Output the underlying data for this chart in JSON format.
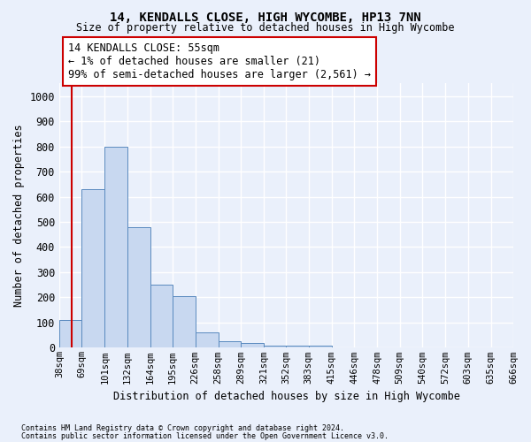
{
  "title": "14, KENDALLS CLOSE, HIGH WYCOMBE, HP13 7NN",
  "subtitle": "Size of property relative to detached houses in High Wycombe",
  "xlabel": "Distribution of detached houses by size in High Wycombe",
  "ylabel": "Number of detached properties",
  "footnote1": "Contains HM Land Registry data © Crown copyright and database right 2024.",
  "footnote2": "Contains public sector information licensed under the Open Government Licence v3.0.",
  "bar_edges": [
    38,
    69,
    101,
    132,
    164,
    195,
    226,
    258,
    289,
    321,
    352,
    383,
    415,
    446,
    478,
    509,
    540,
    572,
    603,
    635,
    666
  ],
  "bar_values": [
    110,
    630,
    800,
    480,
    250,
    205,
    62,
    27,
    18,
    10,
    8,
    10,
    0,
    0,
    0,
    0,
    0,
    0,
    0,
    0
  ],
  "bar_color": "#c8d8f0",
  "bar_edge_color": "#5a8abf",
  "property_size": 55,
  "property_line_color": "#cc0000",
  "annotation_line1": "14 KENDALLS CLOSE: 55sqm",
  "annotation_line2": "← 1% of detached houses are smaller (21)",
  "annotation_line3": "99% of semi-detached houses are larger (2,561) →",
  "annotation_box_color": "#ffffff",
  "annotation_box_edge_color": "#cc0000",
  "ylim": [
    0,
    1050
  ],
  "xlim_left": 38,
  "xlim_right": 666,
  "background_color": "#eaf0fb",
  "grid_color": "#ffffff",
  "yticks": [
    0,
    100,
    200,
    300,
    400,
    500,
    600,
    700,
    800,
    900,
    1000
  ],
  "bar_linewidth": 0.7,
  "red_line_x": 55
}
